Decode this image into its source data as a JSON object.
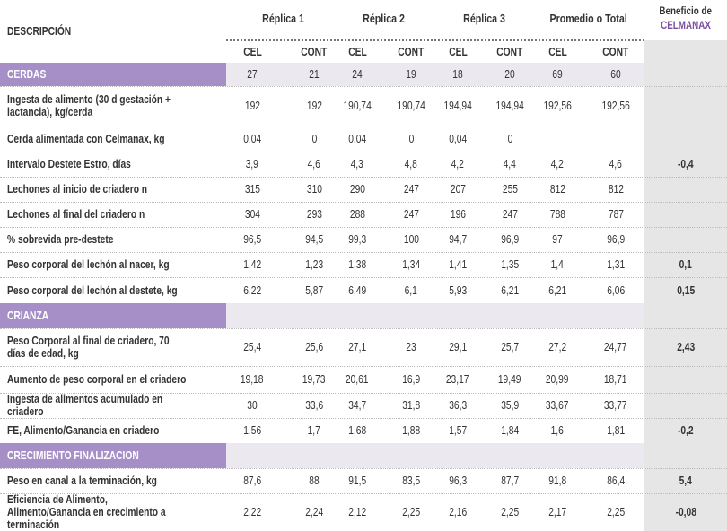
{
  "header": {
    "description": "DESCRIPCIÓN",
    "groups": [
      "Réplica 1",
      "Réplica 2",
      "Réplica 3",
      "Promedio o Total"
    ],
    "benefit": [
      "Beneficio de",
      "CELMANAX"
    ]
  },
  "subheaders": [
    "CEL",
    "CONT",
    "CEL",
    "CONT",
    "CEL",
    "CONT",
    "CEL",
    "CONT"
  ],
  "sections": [
    {
      "title": "CERDAS",
      "values": [
        "27",
        "21",
        "24",
        "19",
        "18",
        "20",
        "69",
        "60"
      ],
      "rows": [
        {
          "label": "Ingesta de alimento (30 d gestación + lactancia), kg/cerda",
          "values": [
            "192",
            "192",
            "190,74",
            "190,74",
            "194,94",
            "194,94",
            "192,56",
            "192,56"
          ]
        },
        {
          "label": "Cerda alimentada con Celmanax, kg",
          "values": [
            "0,04",
            "0",
            "0,04",
            "0",
            "0,04",
            "0"
          ]
        },
        {
          "label": "Intervalo Destete Estro, días",
          "values": [
            "3,9",
            "4,6",
            "4,3",
            "4,8",
            "4,2",
            "4,4",
            "4,2",
            "4,6"
          ],
          "benefit": "-0,4"
        },
        {
          "label": "Lechones al inicio de criadero n",
          "values": [
            "315",
            "310",
            "290",
            "247",
            "207",
            "255",
            "812",
            "812"
          ]
        },
        {
          "label": "Lechones al final del criadero n",
          "values": [
            "304",
            "293",
            "288",
            "247",
            "196",
            "247",
            "788",
            "787"
          ]
        },
        {
          "label": "% sobrevida pre-destete",
          "values": [
            "96,5",
            "94,5",
            "99,3",
            "100",
            "94,7",
            "96,9",
            "97",
            "96,9"
          ]
        },
        {
          "label": "Peso corporal del lechón al nacer, kg",
          "values": [
            "1,42",
            "1,23",
            "1,38",
            "1,34",
            "1,41",
            "1,35",
            "1,4",
            "1,31"
          ],
          "benefit": "0,1"
        },
        {
          "label": "Peso corporal del lechón al destete, kg",
          "values": [
            "6,22",
            "5,87",
            "6,49",
            "6,1",
            "5,93",
            "6,21",
            "6,21",
            "6,06"
          ],
          "benefit": "0,15"
        }
      ]
    },
    {
      "title": "CRIANZA",
      "rows": [
        {
          "label": "Peso Corporal al final de criadero, 70 días de edad, kg",
          "values": [
            "25,4",
            "25,6",
            "27,1",
            "23",
            "29,1",
            "25,7",
            "27,2",
            "24,77"
          ],
          "benefit": "2,43"
        },
        {
          "label": "Aumento de peso corporal en el criadero",
          "values": [
            "19,18",
            "19,73",
            "20,61",
            "16,9",
            "23,17",
            "19,49",
            "20,99",
            "18,71"
          ]
        },
        {
          "label": "Ingesta de alimentos acumulado en criadero",
          "values": [
            "30",
            "33,6",
            "34,7",
            "31,8",
            "36,3",
            "35,9",
            "33,67",
            "33,77"
          ]
        },
        {
          "label": "FE, Alimento/Ganancia en criadero",
          "values": [
            "1,56",
            "1,7",
            "1,68",
            "1,88",
            "1,57",
            "1,84",
            "1,6",
            "1,81"
          ],
          "benefit": "-0,2"
        }
      ]
    },
    {
      "title": "CRECIMIENTO FINALIZACION",
      "rows": [
        {
          "label": "Peso en canal a la terminación, kg",
          "values": [
            "87,6",
            "88",
            "91,5",
            "83,5",
            "96,3",
            "87,7",
            "91,8",
            "86,4"
          ],
          "benefit": "5,4"
        },
        {
          "label": "Eficiencia de Alimento, Alimento/Ganancia en crecimiento a terminación",
          "values": [
            "2,22",
            "2,24",
            "2,12",
            "2,25",
            "2,16",
            "2,25",
            "2,17",
            "2,25"
          ],
          "benefit": "-0,08"
        }
      ]
    }
  ]
}
